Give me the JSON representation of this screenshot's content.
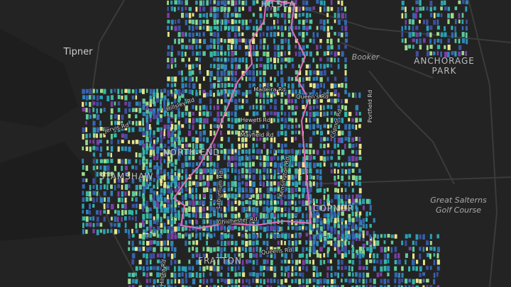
{
  "map": {
    "places": [
      "Tipner",
      "Booker",
      "ANCHORAGE",
      "PARK",
      "STAMSHAW",
      "NORTH END",
      "COPNOR",
      "HILSEA",
      "FRATTON"
    ],
    "landmarks": [
      "Great Salterns",
      "Golf Course"
    ],
    "streets": [
      "Portfield Rd",
      "Jervis Rd",
      "Hewett Rd",
      "Mayfield Rd",
      "Madeira Rd",
      "Chichester Rd",
      "Queens Rd",
      "Kensington Rd",
      "Copnor Rd",
      "Hillsley Rd",
      "Queen's Rd",
      "Laburnum Rd",
      "Hilsea Rd"
    ]
  }
}
